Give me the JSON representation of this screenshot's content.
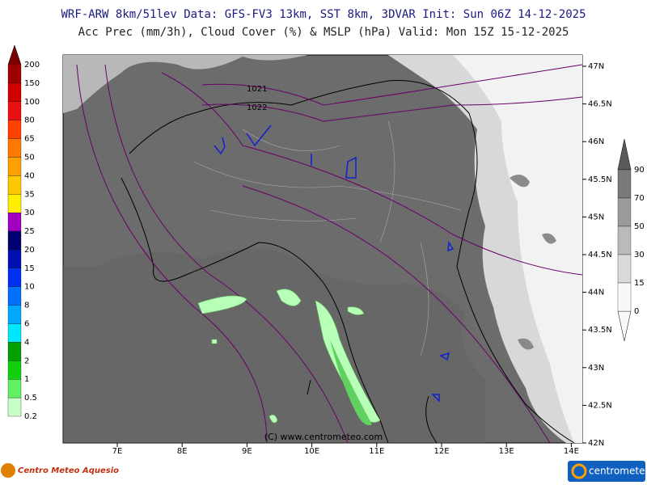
{
  "header": {
    "line1": "WRF-ARW 8km/51lev  Data: GFS-FV3 13km, SST 8km, 3DVAR  Init: Sun 06Z 14-12-2025",
    "line2": "Acc Prec (mm/3h), Cloud Cover (%) & MSLP (hPa)  Valid: Mon 15Z 15-12-2025"
  },
  "precip_scale": {
    "labels": [
      "200",
      "150",
      "100",
      "80",
      "65",
      "50",
      "40",
      "35",
      "30",
      "25",
      "20",
      "15",
      "10",
      "8",
      "6",
      "4",
      "2",
      "1",
      "0.5",
      "0.2"
    ],
    "colors": [
      "#7a0000",
      "#a00000",
      "#d00000",
      "#e81010",
      "#ff4000",
      "#ff7a00",
      "#ffa000",
      "#ffc800",
      "#ffee00",
      "#a000c0",
      "#000070",
      "#0010b0",
      "#0030f0",
      "#0070ff",
      "#00a8ff",
      "#00e8ff",
      "#00a000",
      "#10d010",
      "#60f060",
      "#c8ffc8"
    ]
  },
  "cloud_scale": {
    "labels": [
      "90",
      "70",
      "50",
      "30",
      "15",
      "0"
    ],
    "colors": [
      "#5a5a5a",
      "#7a7a7a",
      "#9a9a9a",
      "#bababa",
      "#dadada",
      "#f8f8f8"
    ]
  },
  "longitudes": [
    "7E",
    "8E",
    "9E",
    "10E",
    "11E",
    "12E",
    "13E",
    "14E"
  ],
  "latitudes": [
    "47N",
    "46.5N",
    "46N",
    "45.5N",
    "45N",
    "44.5N",
    "44N",
    "43.5N",
    "43N",
    "42.5N",
    "42N"
  ],
  "isobars": [
    "1021",
    "1022"
  ],
  "credit": "(C) www.centrometeo.com",
  "logo_left": "Centro Meteo Aquesio",
  "logo_right": "centrometeo"
}
